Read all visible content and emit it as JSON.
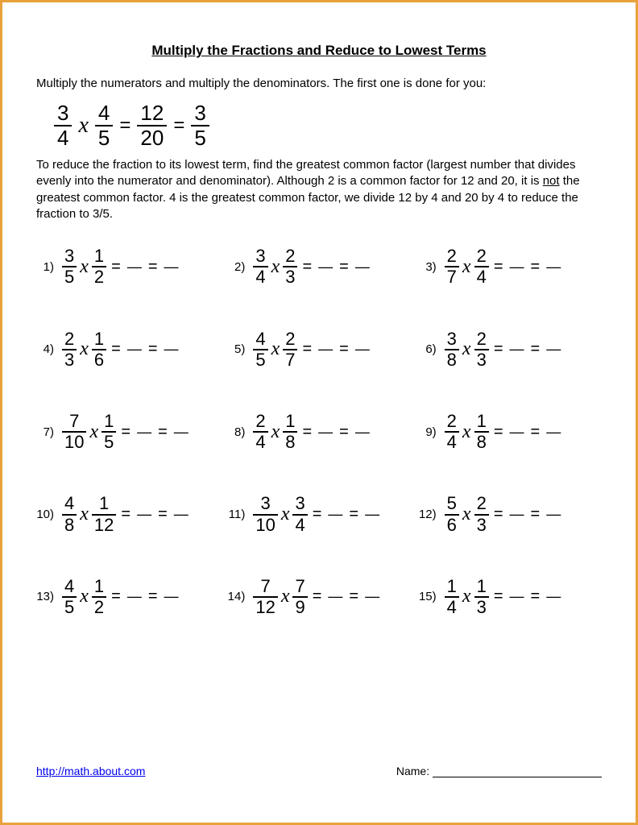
{
  "title": "Multiply the Fractions and Reduce to Lowest Terms",
  "instruction": "Multiply the numerators and multiply the denominators.  The first one is done for you:",
  "example": {
    "f1": {
      "n": "3",
      "d": "4"
    },
    "f2": {
      "n": "4",
      "d": "5"
    },
    "res": {
      "n": "12",
      "d": "20"
    },
    "reduced": {
      "n": "3",
      "d": "5"
    }
  },
  "explain_pre": "To reduce the fraction to its lowest term, find the greatest common factor (largest number that divides evenly into the numerator and denominator). Although 2 is a common factor for 12 and 20, it is ",
  "explain_not": "not",
  "explain_post": " the greatest common factor. 4 is the greatest common factor, we divide 12 by 4 and 20 by 4 to reduce the fraction to 3/5.",
  "problems": [
    {
      "num": "1)",
      "f1": {
        "n": "3",
        "d": "5"
      },
      "f2": {
        "n": "1",
        "d": "2"
      }
    },
    {
      "num": "2)",
      "f1": {
        "n": "3",
        "d": "4"
      },
      "f2": {
        "n": "2",
        "d": "3"
      }
    },
    {
      "num": "3)",
      "f1": {
        "n": "2",
        "d": "7"
      },
      "f2": {
        "n": "2",
        "d": "4"
      }
    },
    {
      "num": "4)",
      "f1": {
        "n": "2",
        "d": "3"
      },
      "f2": {
        "n": "1",
        "d": "6"
      }
    },
    {
      "num": "5)",
      "f1": {
        "n": "4",
        "d": "5"
      },
      "f2": {
        "n": "2",
        "d": "7"
      }
    },
    {
      "num": "6)",
      "f1": {
        "n": "3",
        "d": "8"
      },
      "f2": {
        "n": "2",
        "d": "3"
      }
    },
    {
      "num": "7)",
      "f1": {
        "n": "7",
        "d": "10"
      },
      "f2": {
        "n": "1",
        "d": "5"
      }
    },
    {
      "num": "8)",
      "f1": {
        "n": "2",
        "d": "4"
      },
      "f2": {
        "n": "1",
        "d": "8"
      }
    },
    {
      "num": "9)",
      "f1": {
        "n": "2",
        "d": "4"
      },
      "f2": {
        "n": "1",
        "d": "8"
      }
    },
    {
      "num": "10)",
      "f1": {
        "n": "4",
        "d": "8"
      },
      "f2": {
        "n": "1",
        "d": "12"
      }
    },
    {
      "num": "11)",
      "f1": {
        "n": "3",
        "d": "10"
      },
      "f2": {
        "n": "3",
        "d": "4"
      }
    },
    {
      "num": "12)",
      "f1": {
        "n": "5",
        "d": "6"
      },
      "f2": {
        "n": "2",
        "d": "3"
      }
    },
    {
      "num": "13)",
      "f1": {
        "n": "4",
        "d": "5"
      },
      "f2": {
        "n": "1",
        "d": "2"
      }
    },
    {
      "num": "14)",
      "f1": {
        "n": "7",
        "d": "12"
      },
      "f2": {
        "n": "7",
        "d": "9"
      }
    },
    {
      "num": "15)",
      "f1": {
        "n": "1",
        "d": "4"
      },
      "f2": {
        "n": "1",
        "d": "3"
      }
    }
  ],
  "footer": {
    "url": "http://math.about.com",
    "name_label": "Name:"
  },
  "style": {
    "border_color": "#e8a23c",
    "text_color": "#000000",
    "link_color": "#0000ee",
    "background": "#ffffff",
    "title_fontsize": 17,
    "body_fontsize": 15,
    "example_fontsize": 26,
    "problem_fontsize": 22
  }
}
